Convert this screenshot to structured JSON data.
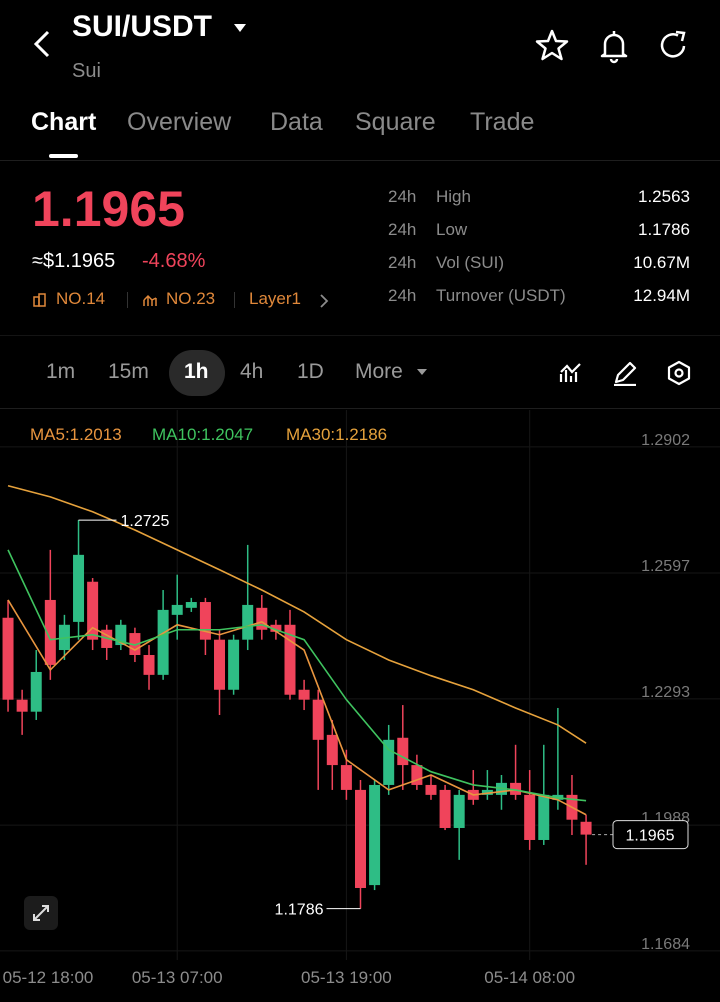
{
  "header": {
    "title": "SUI/USDT",
    "subtitle": "Sui"
  },
  "tabs": [
    "Chart",
    "Overview",
    "Data",
    "Square",
    "Trade"
  ],
  "ticker": {
    "price": "1.1965",
    "usd_price": "≈$1.1965",
    "change": "-4.68%",
    "tags": [
      "NO.14",
      "NO.23",
      "Layer1"
    ]
  },
  "stats": [
    {
      "period": "24h",
      "label": "High",
      "value": "1.2563"
    },
    {
      "period": "24h",
      "label": "Low",
      "value": "1.1786"
    },
    {
      "period": "24h",
      "label": "Vol (SUI)",
      "value": "10.67M"
    },
    {
      "period": "24h",
      "label": "Turnover (USDT)",
      "value": "12.94M"
    }
  ],
  "intervals": [
    "1m",
    "15m",
    "1h",
    "4h",
    "1D",
    "More"
  ],
  "chart_data": {
    "type": "candlestick",
    "open": [
      1.2489,
      1.2291,
      1.2262,
      1.2532,
      1.2411,
      1.2479,
      1.2576,
      1.246,
      1.2423,
      1.2452,
      1.2399,
      1.2351,
      1.2496,
      1.2513,
      1.2527,
      1.2436,
      1.2315,
      1.2436,
      1.2513,
      1.2472,
      1.2472,
      1.2315,
      1.2291,
      1.2206,
      1.2133,
      1.2073,
      1.1843,
      1.2085,
      1.2199,
      1.2133,
      1.2085,
      1.2073,
      1.1981,
      1.2073,
      1.2061,
      1.2061,
      1.209,
      1.2061,
      1.1952,
      1.2049,
      1.2061,
      1.1996
    ],
    "high": [
      1.2532,
      1.2315,
      1.2411,
      1.2653,
      1.2496,
      1.2725,
      1.2585,
      1.2472,
      1.2484,
      1.2465,
      1.2423,
      1.2556,
      1.2593,
      1.2537,
      1.2537,
      1.246,
      1.2448,
      1.2665,
      1.2544,
      1.2484,
      1.2508,
      1.2339,
      1.2315,
      1.2242,
      1.217,
      1.2097,
      1.2097,
      1.223,
      1.2278,
      1.2158,
      1.2109,
      1.2085,
      1.2073,
      1.2121,
      1.2121,
      1.2109,
      1.2182,
      1.2121,
      1.2182,
      1.2271,
      1.2109,
      1.2013
    ],
    "low": [
      1.2262,
      1.2206,
      1.2242,
      1.2339,
      1.2387,
      1.2436,
      1.2411,
      1.2387,
      1.2411,
      1.2382,
      1.2315,
      1.2339,
      1.2436,
      1.2503,
      1.2399,
      1.2254,
      1.2303,
      1.2411,
      1.2436,
      1.2436,
      1.2291,
      1.2266,
      1.2073,
      1.2073,
      1.2049,
      1.1786,
      1.1831,
      1.2061,
      1.2073,
      1.2073,
      1.2049,
      1.1976,
      1.1904,
      1.2037,
      1.2049,
      1.2025,
      1.2049,
      1.1928,
      1.194,
      1.2025,
      1.1964,
      1.1892
    ],
    "close": [
      1.2291,
      1.2262,
      1.2358,
      1.2375,
      1.2472,
      1.2641,
      1.2436,
      1.2416,
      1.2472,
      1.2399,
      1.2351,
      1.2508,
      1.252,
      1.2527,
      1.2436,
      1.2315,
      1.2436,
      1.252,
      1.246,
      1.2455,
      1.2303,
      1.2291,
      1.2194,
      1.2133,
      1.2073,
      1.1836,
      1.2085,
      1.2194,
      1.2133,
      1.2085,
      1.2061,
      1.1981,
      1.2061,
      1.2049,
      1.2073,
      1.209,
      1.2061,
      1.1952,
      1.2061,
      1.2061,
      1.2001,
      1.1965
    ],
    "up_color": "#2ebd85",
    "down_color": "#f0445b",
    "series": [
      {
        "name": "MA5:1.2013",
        "color": "#e8953f",
        "x": [
          0,
          3,
          6,
          9,
          12,
          15,
          18,
          21,
          24,
          27,
          30,
          33,
          36,
          39,
          41
        ],
        "values": [
          1.2532,
          1.2363,
          1.2465,
          1.2411,
          1.2472,
          1.2448,
          1.2479,
          1.2411,
          1.2146,
          1.2073,
          1.2109,
          1.2061,
          1.2073,
          1.2049,
          1.2013
        ]
      },
      {
        "name": "MA10:1.2047",
        "color": "#3fc35f",
        "x": [
          0,
          3,
          6,
          9,
          12,
          15,
          18,
          21,
          24,
          27,
          30,
          33,
          36,
          39,
          41
        ],
        "values": [
          1.2653,
          1.2436,
          1.2448,
          1.2423,
          1.246,
          1.246,
          1.2472,
          1.2436,
          1.2291,
          1.217,
          1.2117,
          1.2085,
          1.2073,
          1.2054,
          1.2047
        ]
      },
      {
        "name": "MA30:1.2186",
        "color": "#e6a23c",
        "x": [
          0,
          3,
          6,
          9,
          12,
          15,
          18,
          21,
          24,
          27,
          30,
          33,
          36,
          39,
          41
        ],
        "values": [
          1.2808,
          1.2781,
          1.2745,
          1.2701,
          1.2653,
          1.2605,
          1.2556,
          1.2503,
          1.2436,
          1.2387,
          1.2349,
          1.2315,
          1.2271,
          1.223,
          1.2186
        ]
      }
    ],
    "xlim": [
      -0.57,
      50.5
    ],
    "xticks": [
      {
        "value": -1,
        "label": "05-12 18:00"
      },
      {
        "value": 12,
        "label": "05-13 07:00"
      },
      {
        "value": 24,
        "label": "05-13 19:00"
      },
      {
        "value": 37,
        "label": "05-14 08:00"
      }
    ],
    "ylim": [
      1.1662,
      1.2991
    ],
    "yticks": [
      1.1684,
      1.1988,
      1.2293,
      1.2597,
      1.2902
    ],
    "grid": true
  }
}
